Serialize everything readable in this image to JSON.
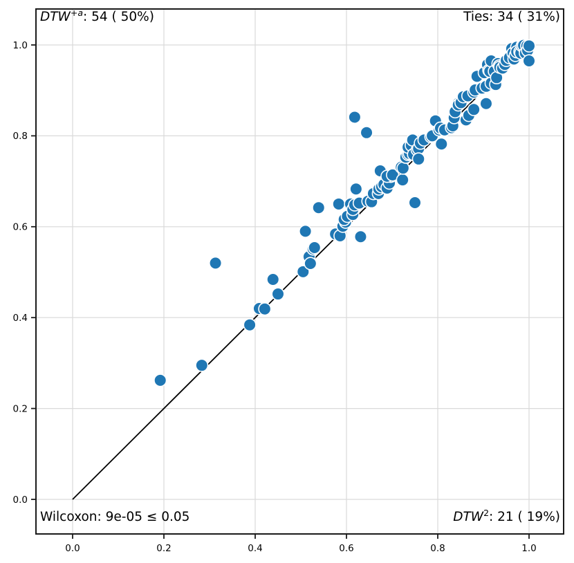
{
  "annotations": {
    "top_left": {
      "method": "DTW",
      "superscript": "+a",
      "rest": ": 54 ( 50%)"
    },
    "top_right": {
      "text": "Ties: 34 ( 31%)"
    },
    "bottom_left": {
      "text": "Wilcoxon: 9e-05 ≤ 0.05"
    },
    "bottom_right": {
      "method": "DTW",
      "superscript": "2",
      "rest": ": 21 ( 19%)"
    }
  },
  "chart_data": {
    "type": "scatter",
    "title": "",
    "xlabel": "",
    "ylabel": "",
    "x_axis": {
      "ticks": [
        0.0,
        0.2,
        0.4,
        0.6,
        0.8,
        1.0
      ],
      "lim": [
        -0.08,
        1.08
      ]
    },
    "y_axis": {
      "ticks": [
        0.0,
        0.2,
        0.4,
        0.6,
        0.8,
        1.0
      ],
      "lim": [
        -0.08,
        1.08
      ]
    },
    "grid": true,
    "grid_color": "#d9d9d9",
    "marker_color": "#1f77b4",
    "marker_edge_color": "#ffffff",
    "diagonal_line": {
      "from": [
        0,
        0
      ],
      "to": [
        1,
        1
      ],
      "color": "#000000"
    },
    "summary": {
      "dtw_plus_a_wins": 54,
      "dtw_plus_a_pct": "50%",
      "ties": 34,
      "ties_pct": "31%",
      "dtw_squared_wins": 21,
      "dtw_squared_pct": "19%",
      "wilcoxon_p": "9e-05",
      "alpha": "0.05"
    },
    "points": [
      [
        0.192,
        0.262
      ],
      [
        0.283,
        0.295
      ],
      [
        0.313,
        0.52
      ],
      [
        0.388,
        0.384
      ],
      [
        0.409,
        0.42
      ],
      [
        0.421,
        0.419
      ],
      [
        0.439,
        0.484
      ],
      [
        0.45,
        0.452
      ],
      [
        0.505,
        0.501
      ],
      [
        0.518,
        0.534
      ],
      [
        0.521,
        0.519
      ],
      [
        0.527,
        0.551
      ],
      [
        0.53,
        0.554
      ],
      [
        0.51,
        0.59
      ],
      [
        0.539,
        0.642
      ],
      [
        0.576,
        0.584
      ],
      [
        0.586,
        0.58
      ],
      [
        0.592,
        0.601
      ],
      [
        0.598,
        0.61
      ],
      [
        0.595,
        0.616
      ],
      [
        0.583,
        0.65
      ],
      [
        0.602,
        0.623
      ],
      [
        0.609,
        0.65
      ],
      [
        0.614,
        0.627
      ],
      [
        0.614,
        0.638
      ],
      [
        0.621,
        0.683
      ],
      [
        0.618,
        0.648
      ],
      [
        0.628,
        0.652
      ],
      [
        0.631,
        0.578
      ],
      [
        0.618,
        0.841
      ],
      [
        0.644,
        0.807
      ],
      [
        0.647,
        0.656
      ],
      [
        0.655,
        0.655
      ],
      [
        0.659,
        0.673
      ],
      [
        0.67,
        0.673
      ],
      [
        0.671,
        0.683
      ],
      [
        0.674,
        0.723
      ],
      [
        0.677,
        0.688
      ],
      [
        0.682,
        0.693
      ],
      [
        0.689,
        0.685
      ],
      [
        0.694,
        0.696
      ],
      [
        0.697,
        0.711
      ],
      [
        0.689,
        0.711
      ],
      [
        0.701,
        0.714
      ],
      [
        0.723,
        0.703
      ],
      [
        0.72,
        0.731
      ],
      [
        0.724,
        0.729
      ],
      [
        0.73,
        0.753
      ],
      [
        0.735,
        0.759
      ],
      [
        0.738,
        0.761
      ],
      [
        0.735,
        0.775
      ],
      [
        0.742,
        0.779
      ],
      [
        0.745,
        0.791
      ],
      [
        0.747,
        0.759
      ],
      [
        0.755,
        0.769
      ],
      [
        0.758,
        0.772
      ],
      [
        0.758,
        0.749
      ],
      [
        0.75,
        0.653
      ],
      [
        0.762,
        0.784
      ],
      [
        0.77,
        0.791
      ],
      [
        0.785,
        0.798
      ],
      [
        0.788,
        0.8
      ],
      [
        0.795,
        0.833
      ],
      [
        0.803,
        0.813
      ],
      [
        0.806,
        0.817
      ],
      [
        0.808,
        0.782
      ],
      [
        0.815,
        0.813
      ],
      [
        0.83,
        0.818
      ],
      [
        0.833,
        0.822
      ],
      [
        0.836,
        0.84
      ],
      [
        0.838,
        0.853
      ],
      [
        0.844,
        0.871
      ],
      [
        0.845,
        0.868
      ],
      [
        0.851,
        0.873
      ],
      [
        0.856,
        0.886
      ],
      [
        0.862,
        0.835
      ],
      [
        0.866,
        0.888
      ],
      [
        0.868,
        0.845
      ],
      [
        0.879,
        0.858
      ],
      [
        0.879,
        0.896
      ],
      [
        0.882,
        0.901
      ],
      [
        0.886,
        0.931
      ],
      [
        0.897,
        0.905
      ],
      [
        0.902,
        0.939
      ],
      [
        0.906,
        0.871
      ],
      [
        0.906,
        0.909
      ],
      [
        0.909,
        0.957
      ],
      [
        0.912,
        0.944
      ],
      [
        0.914,
        0.942
      ],
      [
        0.917,
        0.965
      ],
      [
        0.917,
        0.916
      ],
      [
        0.924,
        0.942
      ],
      [
        0.927,
        0.913
      ],
      [
        0.929,
        0.928
      ],
      [
        0.932,
        0.959
      ],
      [
        0.935,
        0.954
      ],
      [
        0.936,
        0.951
      ],
      [
        0.942,
        0.949
      ],
      [
        0.947,
        0.957
      ],
      [
        0.95,
        0.966
      ],
      [
        0.957,
        0.972
      ],
      [
        0.962,
        0.992
      ],
      [
        0.965,
        0.982
      ],
      [
        0.967,
        0.969
      ],
      [
        0.97,
        0.977
      ],
      [
        0.973,
        0.995
      ],
      [
        0.973,
        0.985
      ],
      [
        0.98,
        0.985
      ],
      [
        0.982,
        0.982
      ],
      [
        0.985,
        0.998
      ],
      [
        0.988,
        0.999
      ],
      [
        0.992,
        0.982
      ],
      [
        0.995,
        0.998
      ],
      [
        0.997,
        0.988
      ],
      [
        1.0,
        0.998
      ],
      [
        1.0,
        0.965
      ]
    ]
  }
}
